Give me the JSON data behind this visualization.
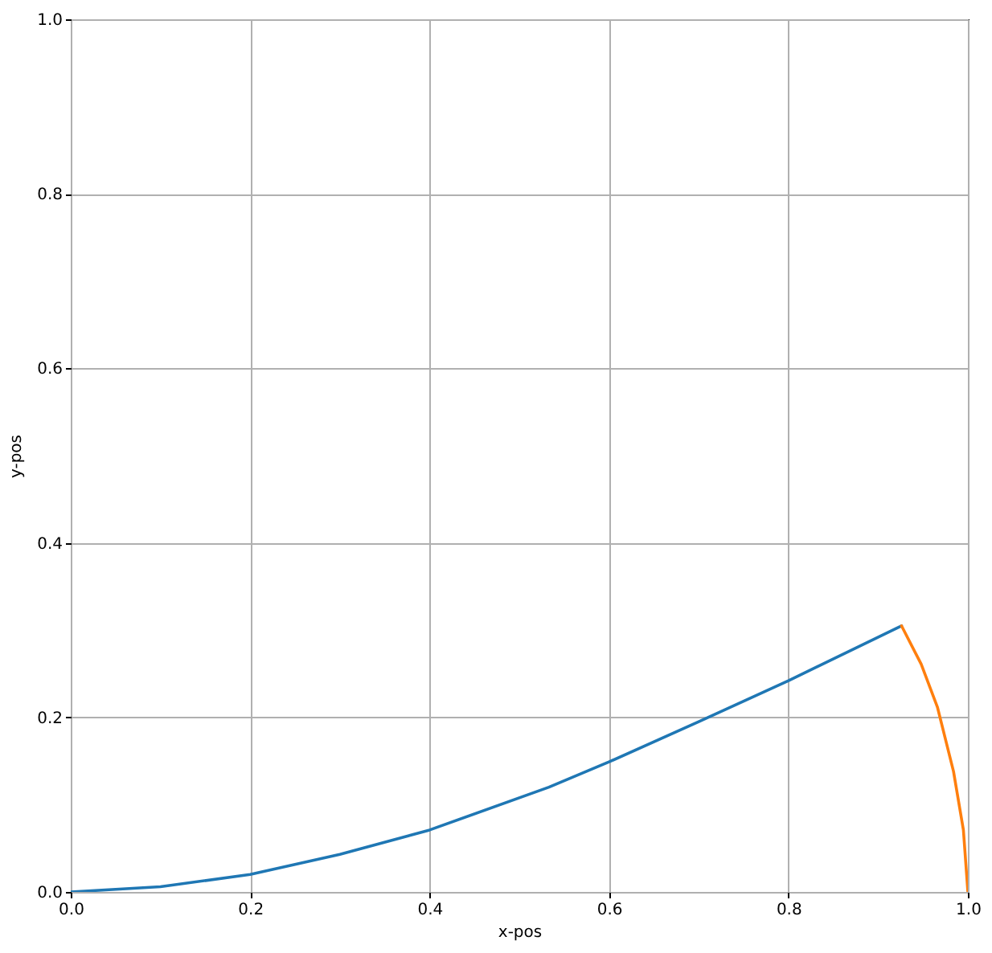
{
  "chart_data": {
    "type": "line",
    "xlabel": "x-pos",
    "ylabel": "y-pos",
    "xlim": [
      0,
      1
    ],
    "ylim": [
      0,
      1
    ],
    "xticks": [
      {
        "value": 0,
        "label": "0.0"
      },
      0.2,
      0.4,
      0.6,
      0.8,
      {
        "value": 1,
        "label": "1.0"
      }
    ],
    "yticks": [
      {
        "value": 0,
        "label": "0.0"
      },
      0.2,
      0.4,
      0.6,
      0.8,
      {
        "value": 1,
        "label": "1.0"
      }
    ],
    "grid": true,
    "series": [
      {
        "color": "#1f77b4",
        "x": [
          0,
          0.1,
          0.2,
          0.3,
          0.4,
          0.533,
          0.6,
          0.7,
          0.8,
          0.926
        ],
        "values": [
          0,
          0.006,
          0.02,
          0.043,
          0.071,
          0.12,
          0.149,
          0.195,
          0.242,
          0.305
        ]
      },
      {
        "color": "#ff7f0e",
        "x": [
          0.926,
          0.948,
          0.966,
          0.984,
          0.995,
          1
        ],
        "values": [
          0.305,
          0.261,
          0.212,
          0.138,
          0.071,
          0
        ]
      }
    ]
  }
}
